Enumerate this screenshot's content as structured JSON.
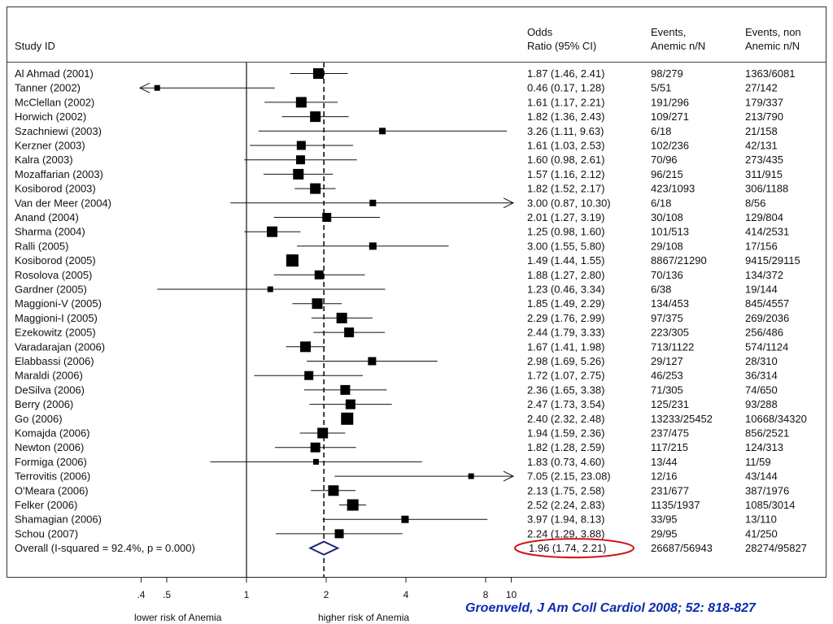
{
  "headers": {
    "study_id": "Study ID",
    "odds_ratio": "Odds\nRatio (95% CI)",
    "events_anemic": "Events,\nAnemic n/N",
    "events_non_anemic": "Events, non\nAnemic n/N"
  },
  "citation": "Groenveld, J Am Coll Cardiol 2008; 52: 818-827",
  "colors": {
    "overall_diamond": "#1a237e",
    "highlight_ellipse": "#d0131b",
    "citation": "#0d2bb0"
  },
  "chart_data": {
    "type": "forest",
    "x_scale": "log",
    "xlim": [
      0.4,
      10
    ],
    "ticks": [
      {
        "value": 0.4,
        "label": ".4"
      },
      {
        "value": 0.5,
        "label": ".5"
      },
      {
        "value": 1,
        "label": "1"
      },
      {
        "value": 2,
        "label": "2"
      },
      {
        "value": 4,
        "label": "4"
      },
      {
        "value": 8,
        "label": "8"
      },
      {
        "value": 10,
        "label": "10"
      }
    ],
    "reference_line": 1,
    "overall_line": 1.96,
    "xlabel_left": "lower risk of Anemia",
    "xlabel_right": "higher risk of Anemia",
    "studies": [
      {
        "name": "Al Ahmad (2001)",
        "or": 1.87,
        "lo": 1.46,
        "hi": 2.41,
        "ci_text": "1.87 (1.46, 2.41)",
        "anemic": "98/279",
        "non_anemic": "1363/6081",
        "weight": 13
      },
      {
        "name": "Tanner (2002)",
        "or": 0.46,
        "lo": 0.17,
        "hi": 1.28,
        "ci_text": "0.46 (0.17, 1.28)",
        "anemic": "5/51",
        "non_anemic": "27/142",
        "weight": 7
      },
      {
        "name": "McClellan (2002)",
        "or": 1.61,
        "lo": 1.17,
        "hi": 2.21,
        "ci_text": "1.61 (1.17, 2.21)",
        "anemic": "191/296",
        "non_anemic": "179/337",
        "weight": 13
      },
      {
        "name": "Horwich (2002)",
        "or": 1.82,
        "lo": 1.36,
        "hi": 2.43,
        "ci_text": "1.82 (1.36, 2.43)",
        "anemic": "109/271",
        "non_anemic": "213/790",
        "weight": 13
      },
      {
        "name": "Szachniewi (2003)",
        "or": 3.26,
        "lo": 1.11,
        "hi": 9.63,
        "ci_text": "3.26 (1.11, 9.63)",
        "anemic": "6/18",
        "non_anemic": "21/158",
        "weight": 8
      },
      {
        "name": "Kerzner (2003)",
        "or": 1.61,
        "lo": 1.03,
        "hi": 2.53,
        "ci_text": "1.61 (1.03, 2.53)",
        "anemic": "102/236",
        "non_anemic": "42/131",
        "weight": 11
      },
      {
        "name": "Kalra (2003)",
        "or": 1.6,
        "lo": 0.98,
        "hi": 2.61,
        "ci_text": "1.60 (0.98, 2.61)",
        "anemic": "70/96",
        "non_anemic": "273/435",
        "weight": 11
      },
      {
        "name": "Mozaffarian (2003)",
        "or": 1.57,
        "lo": 1.16,
        "hi": 2.12,
        "ci_text": "1.57 (1.16, 2.12)",
        "anemic": "96/215",
        "non_anemic": "311/915",
        "weight": 13
      },
      {
        "name": "Kosiborod (2003)",
        "or": 1.82,
        "lo": 1.52,
        "hi": 2.17,
        "ci_text": "1.82 (1.52, 2.17)",
        "anemic": "423/1093",
        "non_anemic": "306/1188",
        "weight": 13
      },
      {
        "name": "Van der Meer (2004)",
        "or": 3.0,
        "lo": 0.87,
        "hi": 10.3,
        "ci_text": "3.00 (0.87, 10.30)",
        "anemic": "6/18",
        "non_anemic": "8/56",
        "weight": 8
      },
      {
        "name": "Anand (2004)",
        "or": 2.01,
        "lo": 1.27,
        "hi": 3.19,
        "ci_text": "2.01 (1.27, 3.19)",
        "anemic": "30/108",
        "non_anemic": "129/804",
        "weight": 11
      },
      {
        "name": "Sharma (2004)",
        "or": 1.25,
        "lo": 0.98,
        "hi": 1.6,
        "ci_text": "1.25 (0.98, 1.60)",
        "anemic": "101/513",
        "non_anemic": "414/2531",
        "weight": 13
      },
      {
        "name": "Ralli (2005)",
        "or": 3.0,
        "lo": 1.55,
        "hi": 5.8,
        "ci_text": "3.00 (1.55, 5.80)",
        "anemic": "29/108",
        "non_anemic": "17/156",
        "weight": 9
      },
      {
        "name": "Kosiborod (2005)",
        "or": 1.49,
        "lo": 1.44,
        "hi": 1.55,
        "ci_text": "1.49 (1.44, 1.55)",
        "anemic": "8867/21290",
        "non_anemic": "9415/29115",
        "weight": 15
      },
      {
        "name": "Rosolova (2005)",
        "or": 1.88,
        "lo": 1.27,
        "hi": 2.8,
        "ci_text": "1.88 (1.27, 2.80)",
        "anemic": "70/136",
        "non_anemic": "134/372",
        "weight": 11
      },
      {
        "name": "Gardner (2005)",
        "or": 1.23,
        "lo": 0.46,
        "hi": 3.34,
        "ci_text": "1.23 (0.46, 3.34)",
        "anemic": "6/38",
        "non_anemic": "19/144",
        "weight": 7
      },
      {
        "name": "Maggioni-V (2005)",
        "or": 1.85,
        "lo": 1.49,
        "hi": 2.29,
        "ci_text": "1.85 (1.49, 2.29)",
        "anemic": "134/453",
        "non_anemic": "845/4557",
        "weight": 13
      },
      {
        "name": "Maggioni-I (2005)",
        "or": 2.29,
        "lo": 1.76,
        "hi": 2.99,
        "ci_text": "2.29 (1.76, 2.99)",
        "anemic": "97/375",
        "non_anemic": "269/2036",
        "weight": 13
      },
      {
        "name": "Ezekowitz (2005)",
        "or": 2.44,
        "lo": 1.79,
        "hi": 3.33,
        "ci_text": "2.44 (1.79, 3.33)",
        "anemic": "223/305",
        "non_anemic": "256/486",
        "weight": 12
      },
      {
        "name": "Varadarajan (2006)",
        "or": 1.67,
        "lo": 1.41,
        "hi": 1.98,
        "ci_text": "1.67 (1.41, 1.98)",
        "anemic": "713/1122",
        "non_anemic": "574/1124",
        "weight": 13
      },
      {
        "name": "Elabbassi (2006)",
        "or": 2.98,
        "lo": 1.69,
        "hi": 5.26,
        "ci_text": "2.98 (1.69, 5.26)",
        "anemic": "29/127",
        "non_anemic": "28/310",
        "weight": 10
      },
      {
        "name": "Maraldi (2006)",
        "or": 1.72,
        "lo": 1.07,
        "hi": 2.75,
        "ci_text": "1.72 (1.07, 2.75)",
        "anemic": "46/253",
        "non_anemic": "36/314",
        "weight": 11
      },
      {
        "name": "DeSilva (2006)",
        "or": 2.36,
        "lo": 1.65,
        "hi": 3.38,
        "ci_text": "2.36 (1.65, 3.38)",
        "anemic": "71/305",
        "non_anemic": "74/650",
        "weight": 12
      },
      {
        "name": "Berry (2006)",
        "or": 2.47,
        "lo": 1.73,
        "hi": 3.54,
        "ci_text": "2.47 (1.73, 3.54)",
        "anemic": "125/231",
        "non_anemic": "93/288",
        "weight": 12
      },
      {
        "name": "Go (2006)",
        "or": 2.4,
        "lo": 2.32,
        "hi": 2.48,
        "ci_text": "2.40 (2.32, 2.48)",
        "anemic": "13233/25452",
        "non_anemic": "10668/34320",
        "weight": 15
      },
      {
        "name": "Komajda (2006)",
        "or": 1.94,
        "lo": 1.59,
        "hi": 2.36,
        "ci_text": "1.94 (1.59, 2.36)",
        "anemic": "237/475",
        "non_anemic": "856/2521",
        "weight": 13
      },
      {
        "name": "Newton (2006)",
        "or": 1.82,
        "lo": 1.28,
        "hi": 2.59,
        "ci_text": "1.82 (1.28, 2.59)",
        "anemic": "117/215",
        "non_anemic": "124/313",
        "weight": 12
      },
      {
        "name": "Formiga (2006)",
        "or": 1.83,
        "lo": 0.73,
        "hi": 4.6,
        "ci_text": "1.83 (0.73, 4.60)",
        "anemic": "13/44",
        "non_anemic": "11/59",
        "weight": 7
      },
      {
        "name": "Terrovitis (2006)",
        "or": 7.05,
        "lo": 2.15,
        "hi": 23.08,
        "ci_text": "7.05 (2.15, 23.08)",
        "anemic": "12/16",
        "non_anemic": "43/144",
        "weight": 7
      },
      {
        "name": "O'Meara (2006)",
        "or": 2.13,
        "lo": 1.75,
        "hi": 2.58,
        "ci_text": "2.13 (1.75, 2.58)",
        "anemic": "231/677",
        "non_anemic": "387/1976",
        "weight": 13
      },
      {
        "name": "Felker (2006)",
        "or": 2.52,
        "lo": 2.24,
        "hi": 2.83,
        "ci_text": "2.52 (2.24, 2.83)",
        "anemic": "1135/1937",
        "non_anemic": "1085/3014",
        "weight": 14
      },
      {
        "name": "Shamagian (2006)",
        "or": 3.97,
        "lo": 1.94,
        "hi": 8.13,
        "ci_text": "3.97 (1.94, 8.13)",
        "anemic": "33/95",
        "non_anemic": "13/110",
        "weight": 9
      },
      {
        "name": "Schou (2007)",
        "or": 2.24,
        "lo": 1.29,
        "hi": 3.88,
        "ci_text": "2.24 (1.29, 3.88)",
        "anemic": "29/95",
        "non_anemic": "41/250",
        "weight": 11
      }
    ],
    "overall": {
      "name": "Overall  (I-squared = 92.4%, p = 0.000)",
      "or": 1.96,
      "lo": 1.74,
      "hi": 2.21,
      "ci_text": "1.96 (1.74, 2.21)",
      "anemic": "26687/56943",
      "non_anemic": "28274/95827"
    }
  }
}
